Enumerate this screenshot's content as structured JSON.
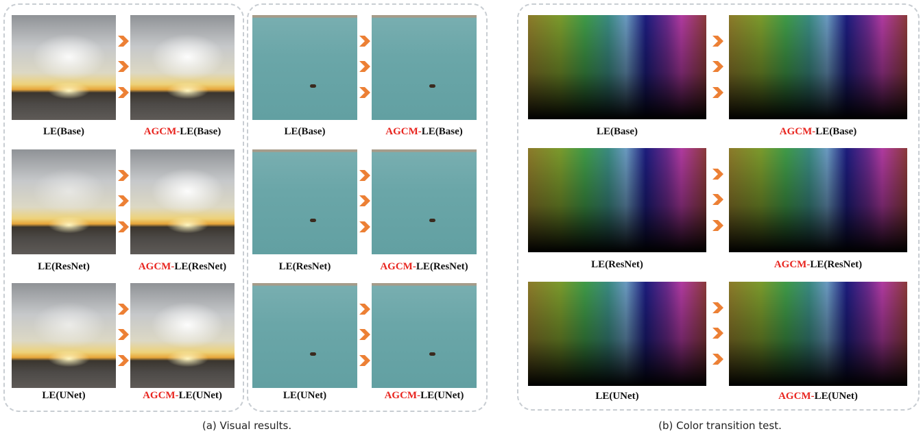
{
  "panels": [
    {
      "rows": [
        {
          "left": "LE(Base)",
          "right": {
            "highlight": "AGCM-",
            "text": "LE(Base)"
          }
        },
        {
          "left": "LE(ResNet)",
          "right": {
            "highlight": "AGCM-",
            "text": "LE(ResNet)"
          }
        },
        {
          "left": "LE(UNet)",
          "right": {
            "highlight": "AGCM-",
            "text": "LE(UNet)"
          }
        }
      ]
    },
    {
      "rows": [
        {
          "left": "LE(Base)",
          "right": {
            "highlight": "AGCM-",
            "text": "LE(Base)"
          }
        },
        {
          "left": "LE(ResNet)",
          "right": {
            "highlight": "AGCM-",
            "text": "LE(ResNet)"
          }
        },
        {
          "left": "LE(UNet)",
          "right": {
            "highlight": "AGCM-",
            "text": "LE(UNet)"
          }
        }
      ]
    },
    {
      "rows": [
        {
          "left": "LE(Base)",
          "right": {
            "highlight": "AGCM-",
            "text": "LE(Base)"
          }
        },
        {
          "left": "LE(ResNet)",
          "right": {
            "highlight": "AGCM-",
            "text": "LE(ResNet)"
          }
        },
        {
          "left": "LE(UNet)",
          "right": {
            "highlight": "AGCM-",
            "text": "LE(UNet)"
          }
        }
      ]
    }
  ],
  "captions": [
    "(a) Visual results.",
    "(b) Color transition test."
  ]
}
